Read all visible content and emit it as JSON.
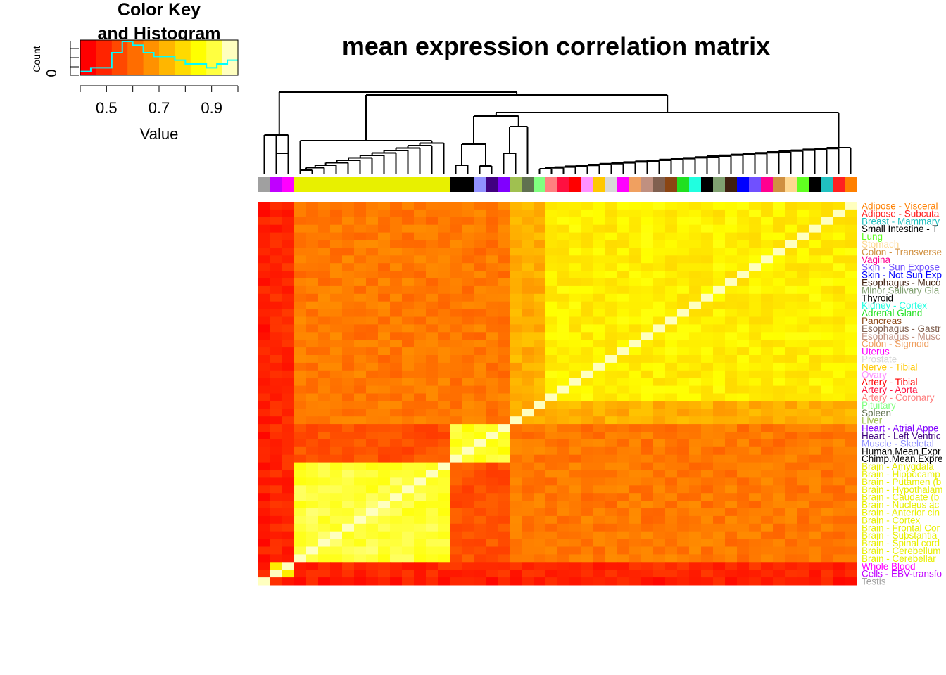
{
  "title": "mean expression correlation matrix",
  "color_key": {
    "title_line1": "Color Key",
    "title_line2": "and Histogram",
    "x_label": "Value",
    "y_label": "Count",
    "y_tick": "0",
    "x_ticks": [
      "0.5",
      "0.7",
      "0.9"
    ],
    "x_tick_values": [
      0.5,
      0.7,
      0.9
    ],
    "range": [
      0.4,
      1.0
    ],
    "palette": [
      "#ff0000",
      "#ff2400",
      "#ff4800",
      "#ff6d00",
      "#ff9100",
      "#ffb600",
      "#ffda00",
      "#ffff00",
      "#ffff40",
      "#ffffbf"
    ],
    "histogram_color": "#00ffff",
    "histogram_counts": [
      1,
      2,
      2,
      6,
      9,
      8,
      6,
      5,
      5,
      4,
      3,
      3,
      2,
      3,
      4
    ]
  },
  "chart_data": {
    "type": "heatmap",
    "title": "mean expression correlation matrix",
    "value_range": [
      0.4,
      1.0
    ],
    "row_labels": [
      "Adipose - Visceral",
      "Adipose - Subcuta",
      "Breast - Mammary",
      "Small Intestine - T",
      "Lung",
      "Stomach",
      "Colon - Transverse",
      "Vagina",
      "Skin - Sun Expose",
      "Skin - Not Sun Exp",
      "Esophagus - Muco",
      "Minor Salivary Gla",
      "Thyroid",
      "Kidney - Cortex",
      "Adrenal Gland",
      "Pancreas",
      "Esophagus - Gastr",
      "Esophagus - Musc",
      "Colon - Sigmoid",
      "Uterus",
      "Prostate",
      "Nerve - Tibial",
      "Ovary",
      "Artery - Tibial",
      "Artery - Aorta",
      "Artery - Coronary",
      "Pituitary",
      "Spleen",
      "Liver",
      "Heart - Atrial Appe",
      "Heart - Left Ventric",
      "Muscle - Skeletal",
      "Human.Mean.Expr",
      "Chimp.Mean.Expre",
      "Brain - Amygdala",
      "Brain - Hippocamp",
      "Brain - Putamen (b",
      "Brain - Hypothalam",
      "Brain - Caudate (b",
      "Brain - Nucleus ac",
      "Brain - Anterior cin",
      "Brain - Cortex",
      "Brain - Frontal Cor",
      "Brain - Substantia",
      "Brain - Spinal cord",
      "Brain - Cerebellum",
      "Brain - Cerebellar",
      "Whole Blood",
      "Cells - EBV-transfo",
      "Testis"
    ],
    "row_label_colors": [
      "#ff8000",
      "#ff2020",
      "#20c0c0",
      "#000000",
      "#60ff20",
      "#ffd890",
      "#d09040",
      "#ff0090",
      "#7050ff",
      "#0000ff",
      "#402010",
      "#80a070",
      "#000000",
      "#20ffe0",
      "#20e020",
      "#8b4513",
      "#806050",
      "#c09080",
      "#f0a060",
      "#ff00ff",
      "#d8d8d8",
      "#ffc800",
      "#ff90ff",
      "#ff0000",
      "#ff1040",
      "#ff8080",
      "#80ff80",
      "#607050",
      "#a0c050",
      "#8000ff",
      "#400080",
      "#9090ff",
      "#000000",
      "#000000",
      "#e8f000",
      "#e8f000",
      "#e8f000",
      "#e8f000",
      "#e8f000",
      "#e8f000",
      "#e8f000",
      "#e8f000",
      "#e8f000",
      "#e8f000",
      "#e8f000",
      "#e8f000",
      "#e8f000",
      "#ff00ff",
      "#c000ff",
      "#a0a0a0"
    ]
  }
}
